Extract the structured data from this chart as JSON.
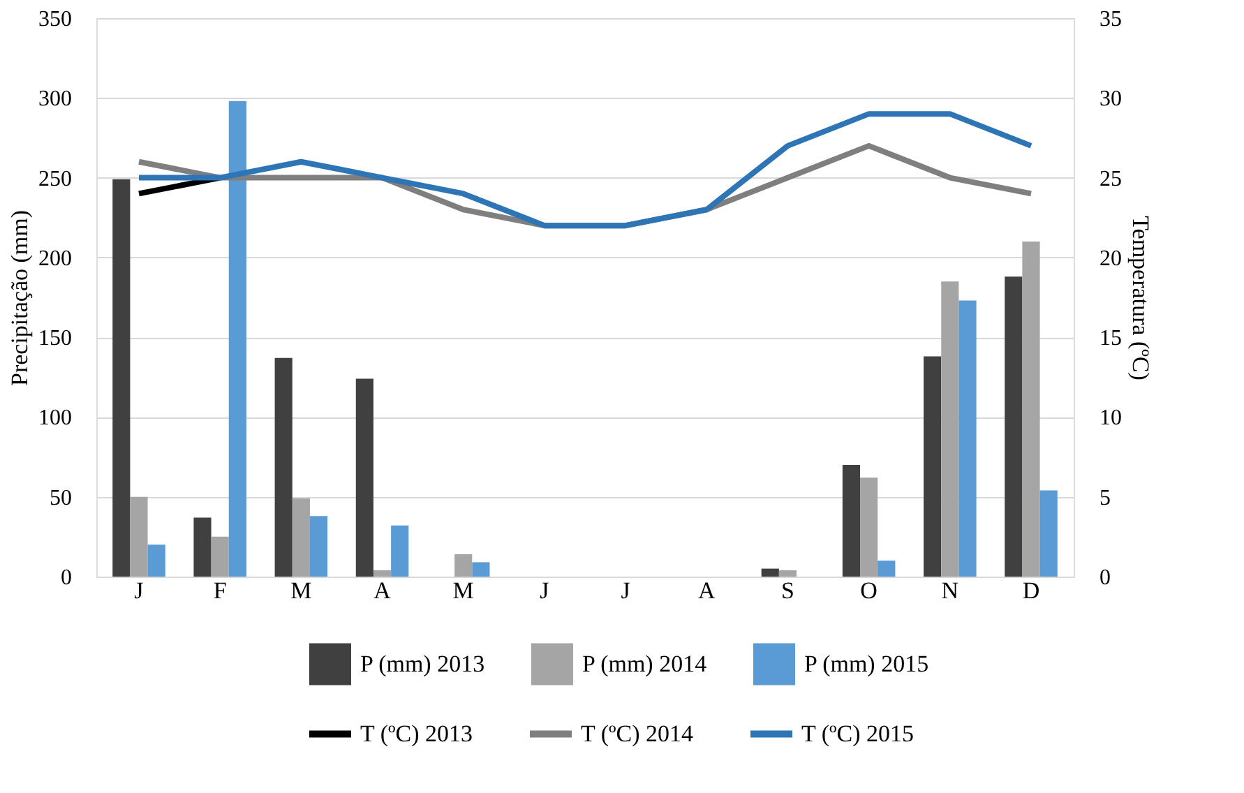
{
  "chart_data": {
    "type": "bar",
    "ylabel": "Precipitação (mm)",
    "y2label": "Temperatura (ºC)",
    "categories": [
      "J",
      "F",
      "M",
      "A",
      "M",
      "J",
      "J",
      "A",
      "S",
      "O",
      "N",
      "D"
    ],
    "series": [
      {
        "name": "P (mm) 2013",
        "color": "#404040",
        "values": [
          249,
          37,
          137,
          124,
          0,
          0,
          0,
          0,
          5,
          70,
          138,
          188
        ]
      },
      {
        "name": "P (mm) 2014",
        "color": "#a5a5a5",
        "values": [
          50,
          25,
          49,
          4,
          14,
          0,
          0,
          0,
          4,
          62,
          185,
          210
        ]
      },
      {
        "name": "P (mm) 2015",
        "color": "#5b9bd5",
        "values": [
          20,
          298,
          38,
          32,
          9,
          0,
          0,
          0,
          0,
          10,
          173,
          54
        ]
      },
      {
        "name": "T (ºC) 2013",
        "type": "line",
        "axis": "y2",
        "color": "#000000",
        "values": [
          24,
          25,
          null,
          null,
          null,
          null,
          null,
          null,
          null,
          null,
          null,
          null
        ]
      },
      {
        "name": "T (ºC) 2014",
        "type": "line",
        "axis": "y2",
        "color": "#7f7f7f",
        "values": [
          26,
          25,
          25,
          25,
          23,
          22,
          22,
          23,
          25,
          27,
          25,
          24
        ]
      },
      {
        "name": "T (ºC) 2015",
        "type": "line",
        "axis": "y2",
        "color": "#2e75b6",
        "values": [
          25,
          25,
          26,
          25,
          24,
          22,
          22,
          23,
          27,
          29,
          29,
          27
        ]
      }
    ],
    "ylim": [
      0,
      350
    ],
    "yticks": [
      0,
      50,
      100,
      150,
      200,
      250,
      300,
      350
    ],
    "y2lim": [
      0,
      35
    ],
    "y2ticks": [
      0,
      5,
      10,
      15,
      20,
      25,
      30,
      35
    ],
    "grid": "y",
    "legend": "bottom",
    "line_style": "solid",
    "marker": "none"
  }
}
